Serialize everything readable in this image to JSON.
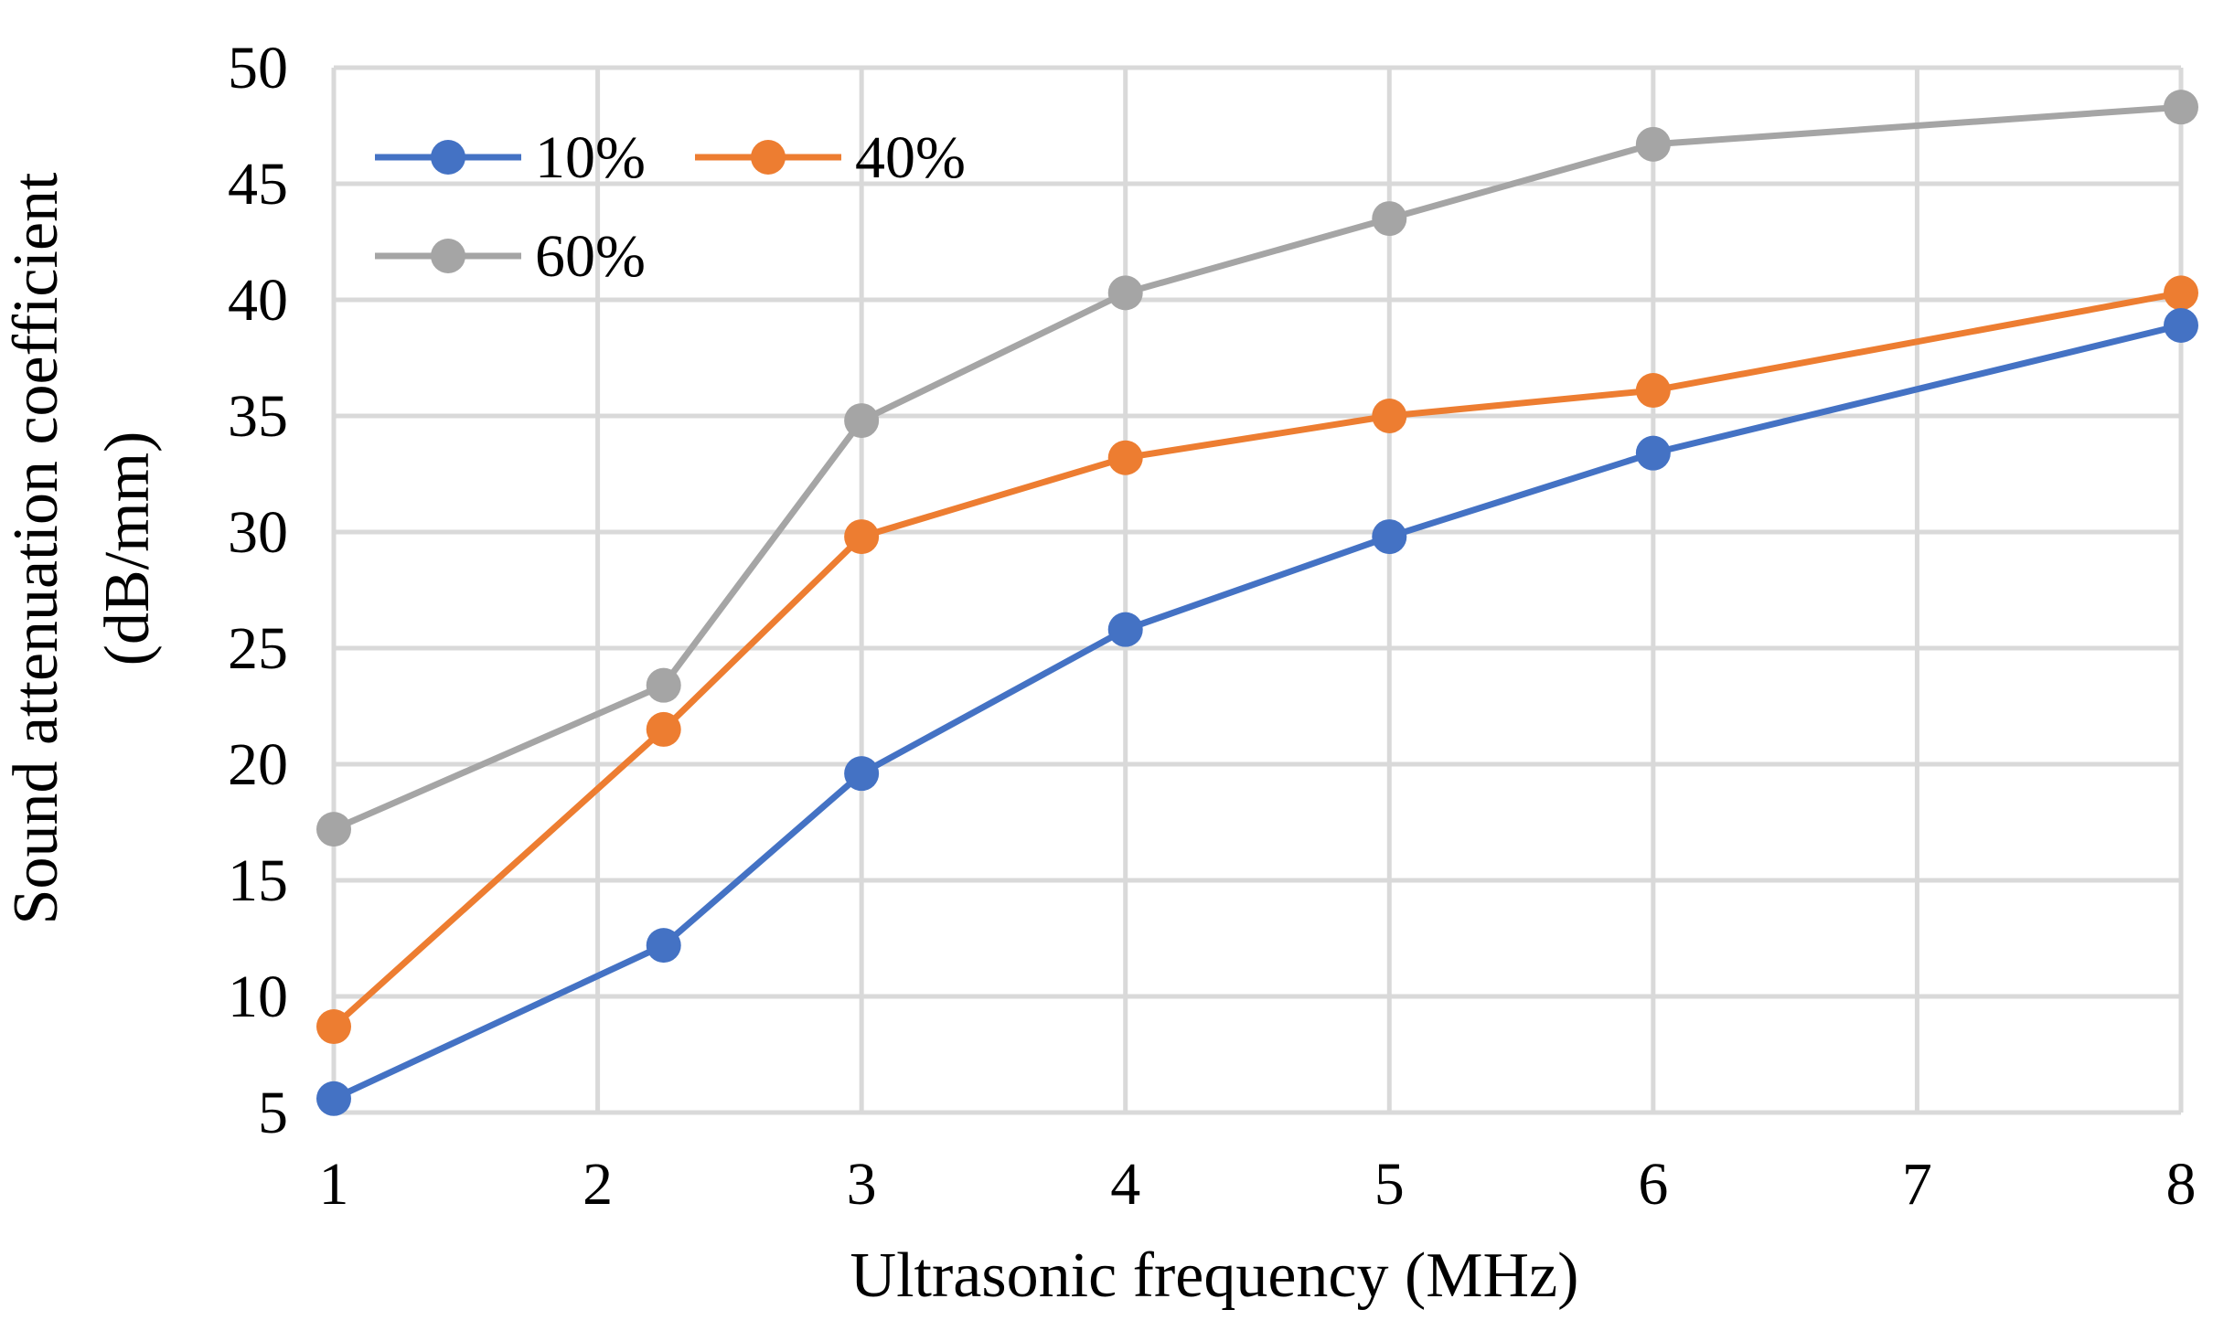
{
  "chart_data": {
    "type": "line",
    "title": "",
    "xlabel": "Ultrasonic frequency (MHz)",
    "ylabel_line1": "Sound attenuation coefficient",
    "ylabel_line2": "(dB/mm)",
    "xlim": [
      1,
      8
    ],
    "ylim": [
      5,
      50
    ],
    "xticks": [
      1,
      2,
      3,
      4,
      5,
      6,
      7,
      8
    ],
    "yticks": [
      5,
      10,
      15,
      20,
      25,
      30,
      35,
      40,
      45,
      50
    ],
    "grid": true,
    "legend_position": "top-left",
    "x": [
      1,
      2.25,
      3,
      4,
      5,
      6,
      8
    ],
    "series": [
      {
        "name": "10%",
        "color": "#4472c4",
        "values": [
          5.6,
          12.2,
          19.6,
          25.8,
          29.8,
          33.4,
          38.9
        ]
      },
      {
        "name": "40%",
        "color": "#ed7d31",
        "values": [
          8.7,
          21.5,
          29.8,
          33.2,
          35.0,
          36.1,
          40.3
        ]
      },
      {
        "name": "60%",
        "color": "#a5a5a5",
        "values": [
          17.2,
          23.4,
          34.8,
          40.3,
          43.5,
          46.7,
          48.3
        ]
      }
    ]
  }
}
